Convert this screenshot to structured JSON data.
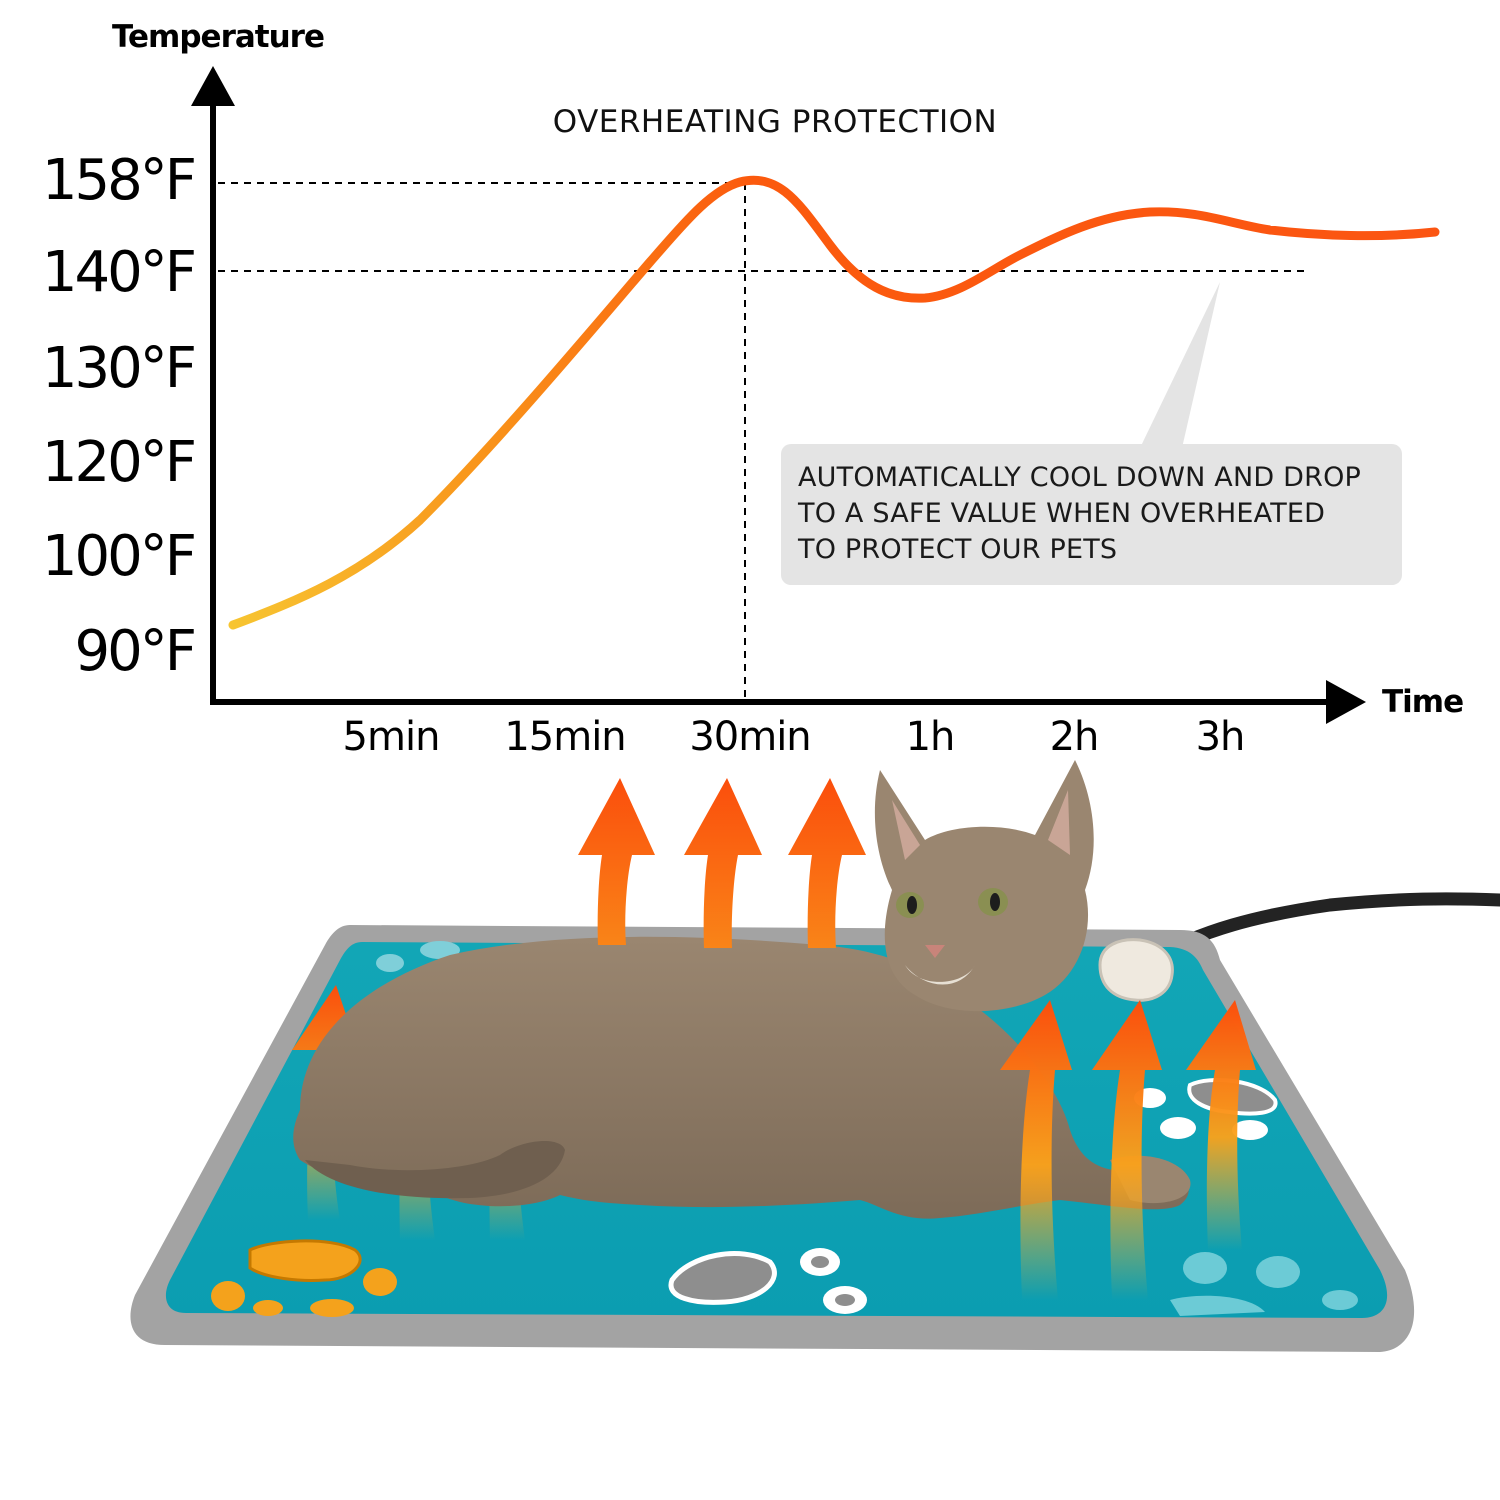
{
  "chart_data": {
    "type": "line",
    "title": "OVERHEATING PROTECTION",
    "ylabel": "Temperature",
    "xlabel": "Time",
    "y_ticks": [
      "158°F",
      "140°F",
      "130°F",
      "120°F",
      "100°F",
      "90°F"
    ],
    "x_ticks": [
      "5min",
      "15min",
      "30min",
      "1h",
      "2h",
      "3h"
    ],
    "series": [
      {
        "x": [
          "0min",
          "5min",
          "15min",
          "30min",
          "1h",
          "2h",
          "3h"
        ],
        "values": [
          90,
          100,
          140,
          158,
          137,
          145,
          144
        ]
      }
    ],
    "reference_lines": [
      "158°F",
      "140°F",
      "30min"
    ],
    "annotation": {
      "lines": [
        "AUTOMATICALLY COOL DOWN AND DROP",
        "TO A SAFE VALUE WHEN  OVERHEATED",
        "TO PROTECT OUR PETS"
      ]
    },
    "line_colors": [
      "#f7c531",
      "#f99019",
      "#fb5a0e",
      "#fb4e0c"
    ],
    "grid": false,
    "legend": "none"
  },
  "illustration": {
    "subject": "cat lying on heated pet pad with rising heat arrows",
    "pad_color": "#0fa4b5",
    "pad_border_color": "#9c9c9c",
    "arrow_colors": [
      "#fb4e0c",
      "#fba21a"
    ]
  }
}
